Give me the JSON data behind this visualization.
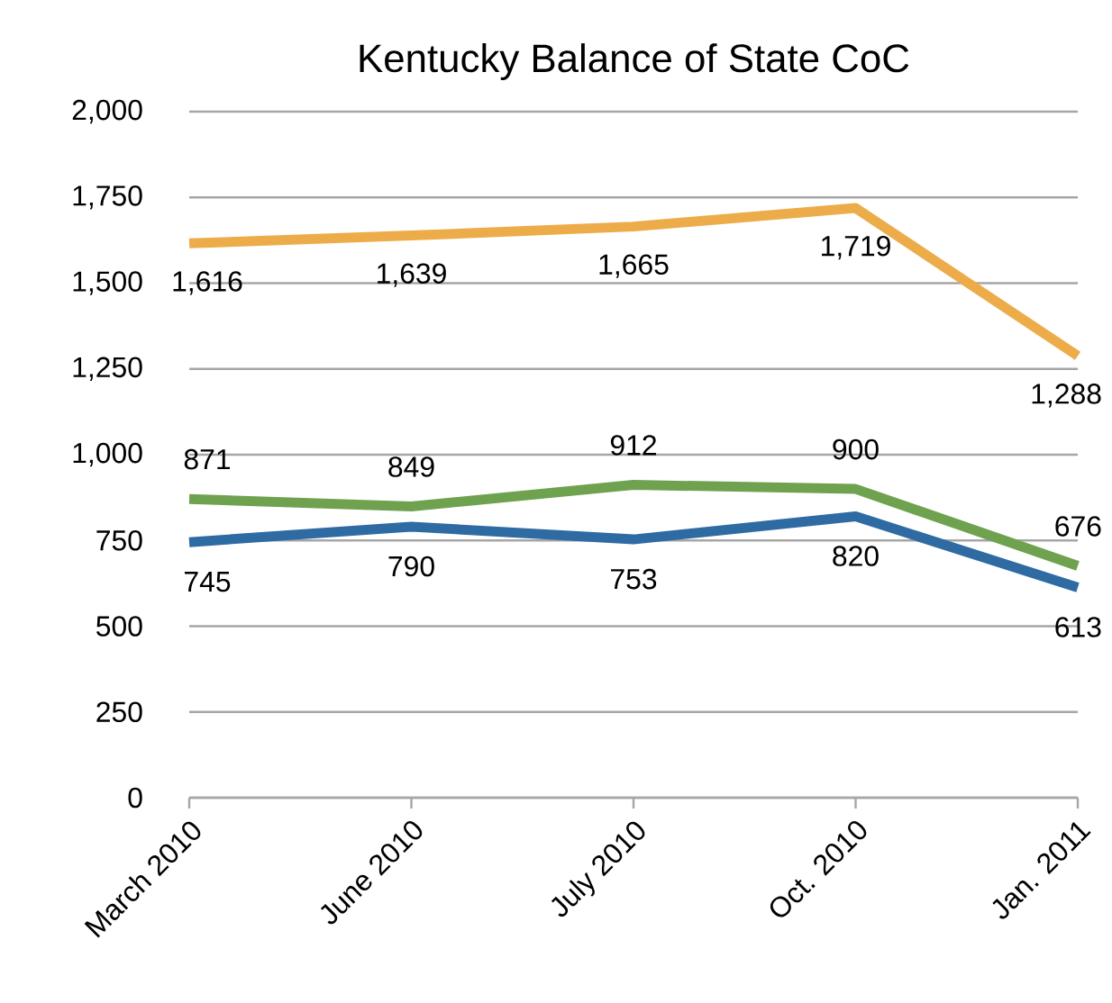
{
  "chart_data": {
    "type": "line",
    "title": "Kentucky Balance of State CoC",
    "categories": [
      "March 2010",
      "June 2010",
      "July 2010",
      "Oct. 2010",
      "Jan. 2011"
    ],
    "series": [
      {
        "color": "#edac4a",
        "values": [
          1616,
          1639,
          1665,
          1719,
          1288
        ],
        "value_labels": [
          "1,616",
          "1,639",
          "1,665",
          "1,719",
          "1,288"
        ]
      },
      {
        "color": "#6fa24f",
        "values": [
          871,
          849,
          912,
          900,
          676
        ],
        "value_labels": [
          "871",
          "849",
          "912",
          "900",
          "676"
        ]
      },
      {
        "color": "#2f6ba3",
        "values": [
          745,
          790,
          753,
          820,
          613
        ],
        "value_labels": [
          "745",
          "790",
          "753",
          "820",
          "613"
        ]
      }
    ],
    "ylim": [
      0,
      2000
    ],
    "yticks": [
      0,
      250,
      500,
      750,
      {
        "value": 1000,
        "label": "1,000"
      },
      {
        "value": 1250,
        "label": "1,250"
      },
      {
        "value": 1500,
        "label": "1,500"
      },
      {
        "value": 1750,
        "label": "1,750"
      },
      {
        "value": 2000,
        "label": "2,000"
      }
    ],
    "grid": "y",
    "marker": "none",
    "line_style": "solid"
  }
}
